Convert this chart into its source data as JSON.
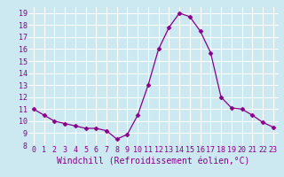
{
  "x": [
    0,
    1,
    2,
    3,
    4,
    5,
    6,
    7,
    8,
    9,
    10,
    11,
    12,
    13,
    14,
    15,
    16,
    17,
    18,
    19,
    20,
    21,
    22,
    23
  ],
  "y": [
    11.0,
    10.5,
    10.0,
    9.8,
    9.6,
    9.4,
    9.4,
    9.2,
    8.5,
    8.9,
    10.5,
    13.0,
    16.0,
    17.8,
    19.0,
    18.7,
    17.5,
    15.7,
    12.0,
    11.1,
    11.0,
    10.5,
    9.9,
    9.5
  ],
  "line_color": "#880088",
  "marker": "D",
  "marker_size": 2.5,
  "bg_color": "#cce8f0",
  "grid_color": "#ffffff",
  "xlabel": "Windchill (Refroidissement éolien,°C)",
  "xlabel_color": "#880088",
  "xlabel_fontsize": 7,
  "tick_color": "#880088",
  "tick_fontsize": 6,
  "xlim": [
    -0.5,
    23.5
  ],
  "ylim": [
    8,
    19.5
  ],
  "yticks": [
    8,
    9,
    10,
    11,
    12,
    13,
    14,
    15,
    16,
    17,
    18,
    19
  ],
  "xticks": [
    0,
    1,
    2,
    3,
    4,
    5,
    6,
    7,
    8,
    9,
    10,
    11,
    12,
    13,
    14,
    15,
    16,
    17,
    18,
    19,
    20,
    21,
    22,
    23
  ]
}
